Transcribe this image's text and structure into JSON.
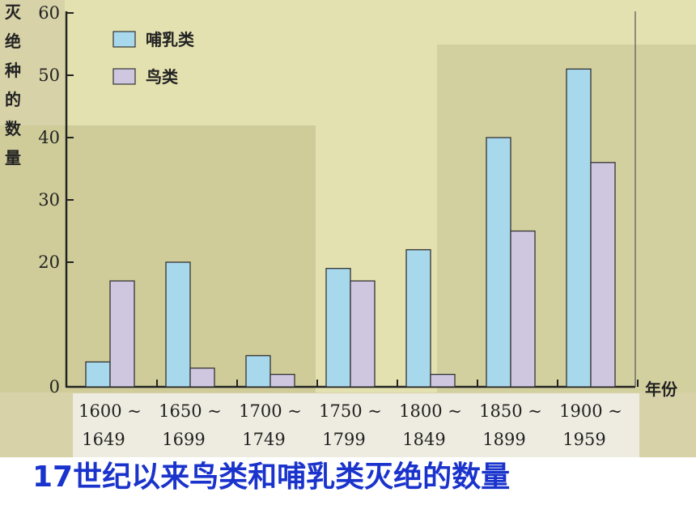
{
  "chart_data": {
    "type": "bar",
    "ylabel": "灭绝种的数量",
    "xlabel": "年份",
    "ylim": [
      0,
      60
    ],
    "yticks": [
      "0",
      "20",
      "30",
      "40",
      "50",
      "60"
    ],
    "categories": [
      {
        "line1": "1600 ~",
        "line2": "1649"
      },
      {
        "line1": "1650 ~",
        "line2": "1699"
      },
      {
        "line1": "1700 ~",
        "line2": "1749"
      },
      {
        "line1": "1750 ~",
        "line2": "1799"
      },
      {
        "line1": "1800 ~",
        "line2": "1849"
      },
      {
        "line1": "1850 ~",
        "line2": "1899"
      },
      {
        "line1": "1900 ~",
        "line2": "1959"
      }
    ],
    "series": [
      {
        "name": "哺乳类",
        "color": "#a8d8ec",
        "values": [
          4,
          20,
          5,
          19,
          22,
          40,
          51
        ]
      },
      {
        "name": "鸟类",
        "color": "#cfc6e0",
        "values": [
          17,
          3,
          2,
          17,
          2,
          25,
          36
        ]
      }
    ],
    "legend_position": "top-left",
    "grid": false
  },
  "caption": {
    "lead": "17",
    "rest": "世纪以来鸟类和哺乳类灭绝的数量"
  }
}
